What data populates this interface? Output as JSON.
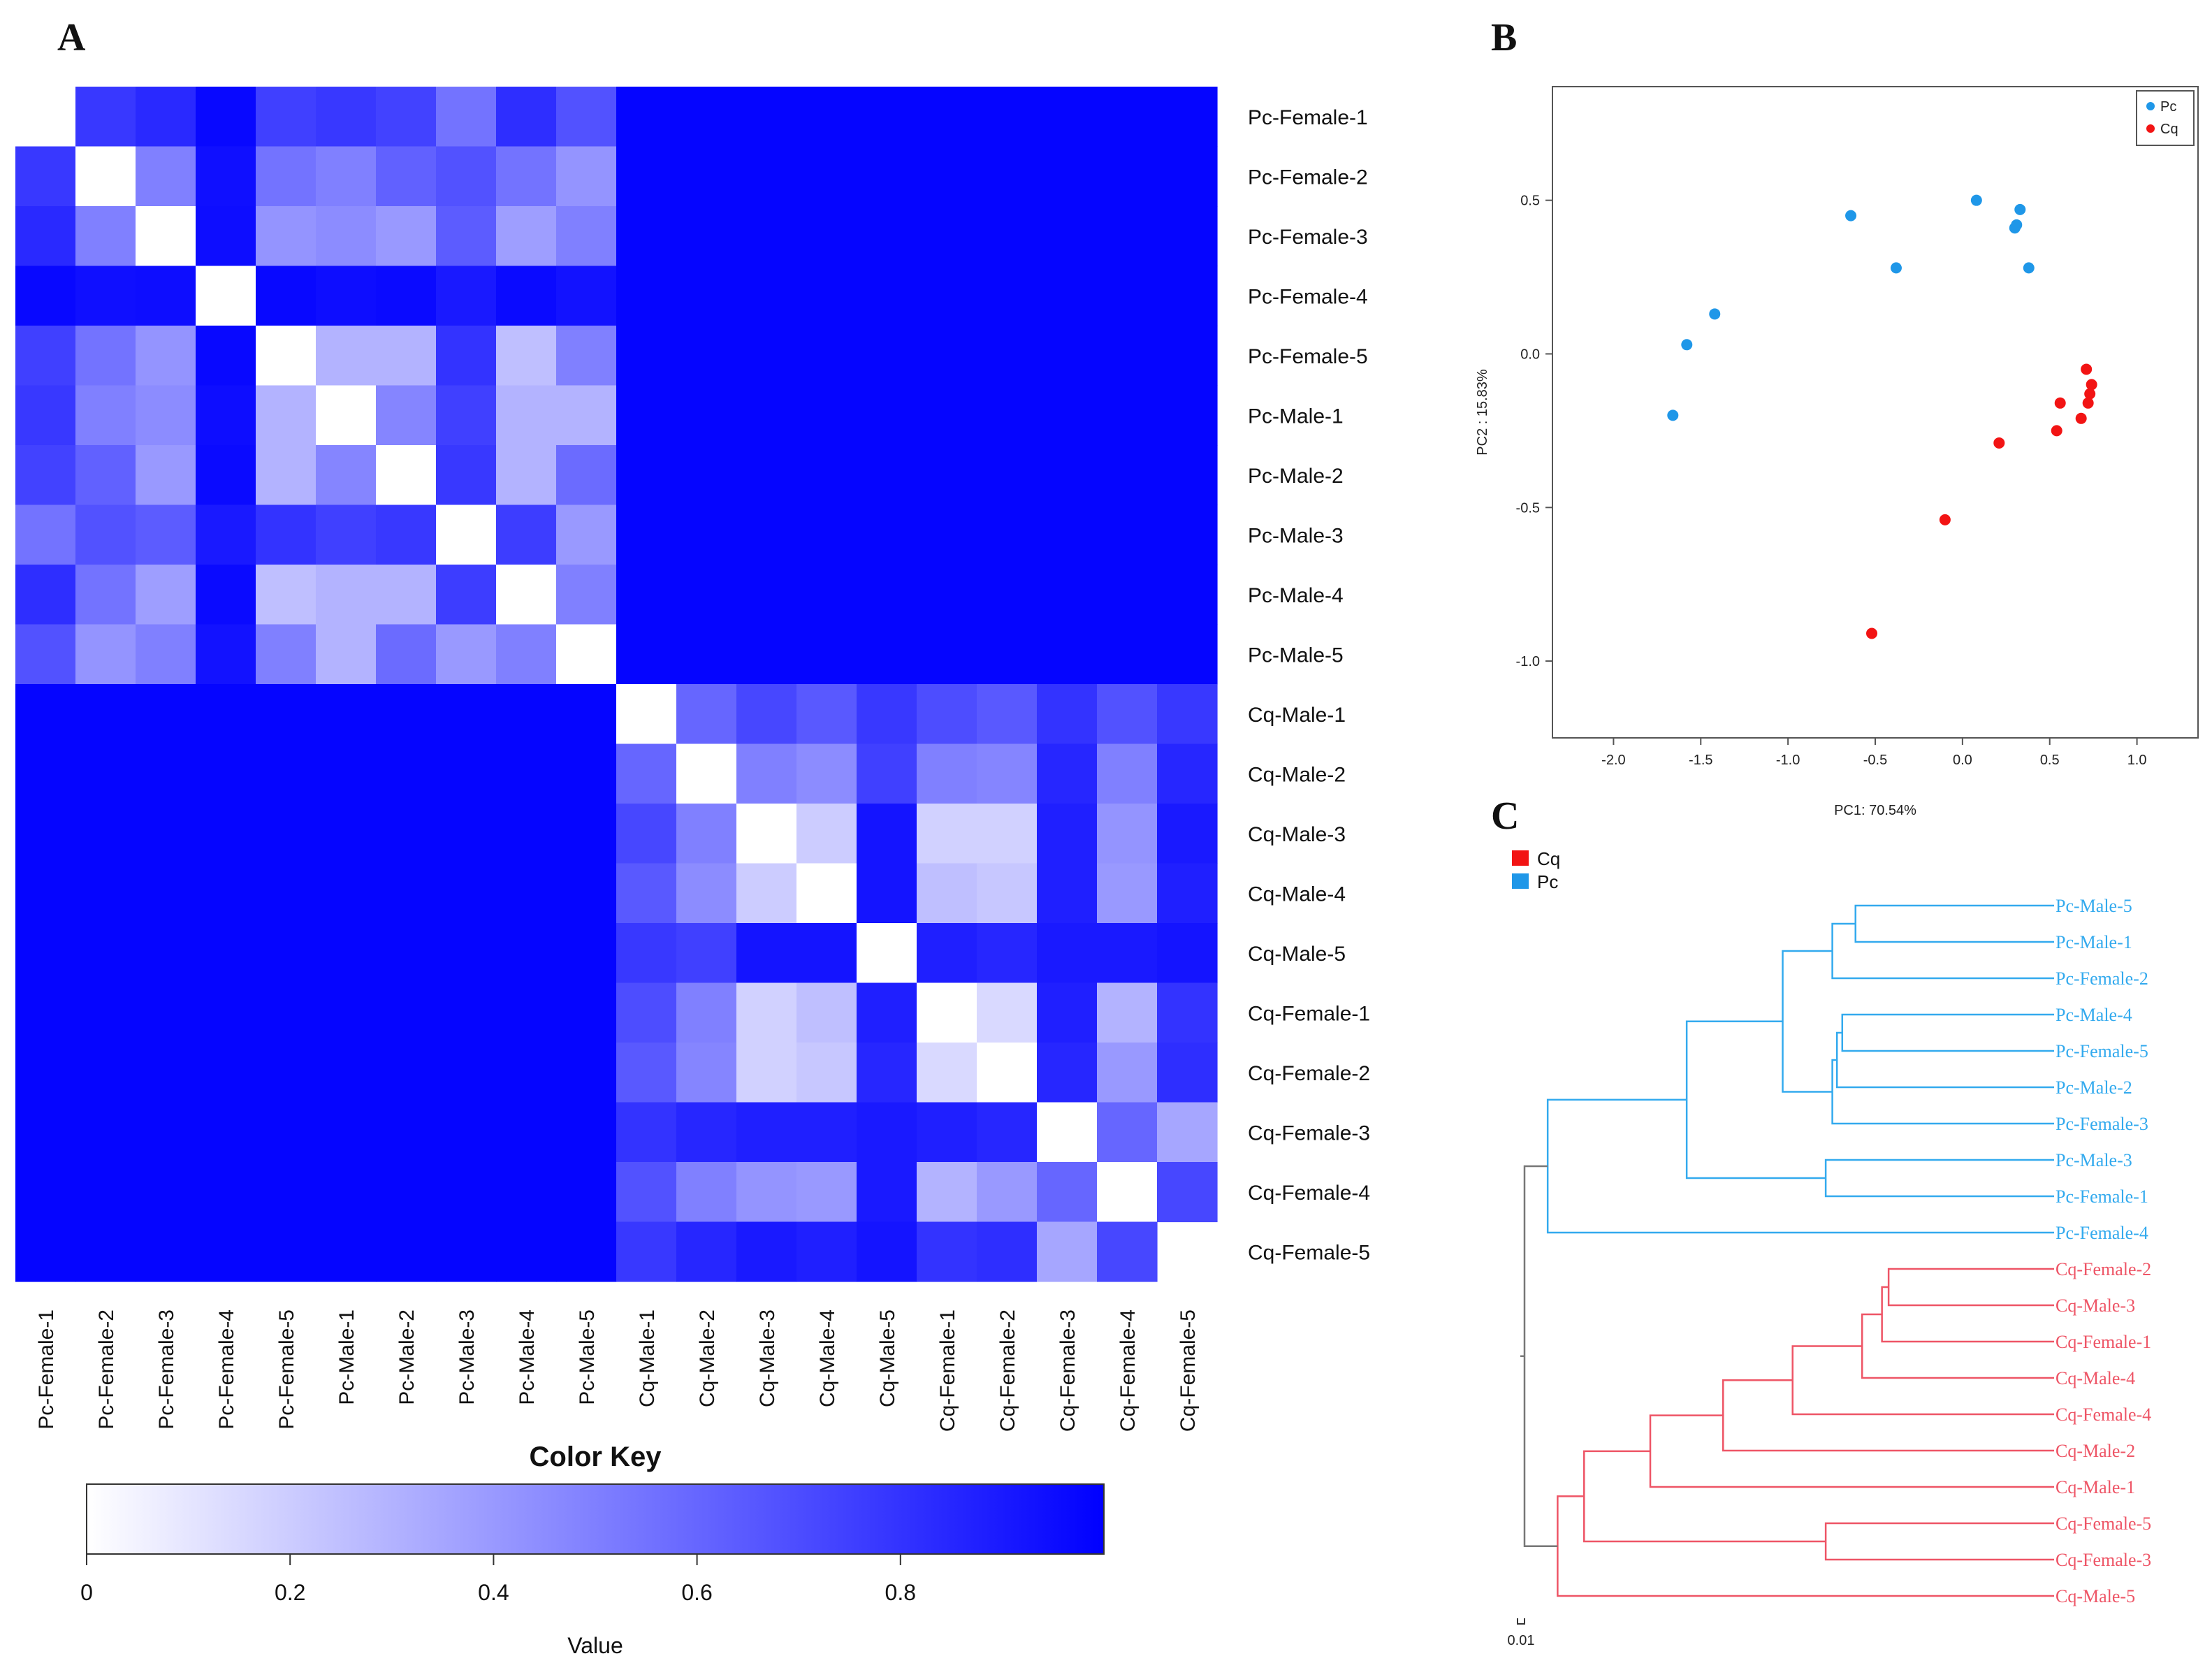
{
  "panels": {
    "a": "A",
    "b": "B",
    "c": "C"
  },
  "colors": {
    "pc": "#1f97e8",
    "cq": "#f21414",
    "dendro_pc": "#33aaee",
    "dendro_cq": "#ee5566",
    "axis": "#555555",
    "heat_high": "#0000ff"
  },
  "chart_data": [
    {
      "type": "heatmap",
      "title": "",
      "samples": [
        "Pc-Female-1",
        "Pc-Female-2",
        "Pc-Female-3",
        "Pc-Female-4",
        "Pc-Female-5",
        "Pc-Male-1",
        "Pc-Male-2",
        "Pc-Male-3",
        "Pc-Male-4",
        "Pc-Male-5",
        "Cq-Male-1",
        "Cq-Male-2",
        "Cq-Male-3",
        "Cq-Male-4",
        "Cq-Male-5",
        "Cq-Female-1",
        "Cq-Female-2",
        "Cq-Female-3",
        "Cq-Female-4",
        "Cq-Female-5"
      ],
      "pc_block_values": [
        [
          0.0,
          0.78,
          0.84,
          0.97,
          0.75,
          0.78,
          0.74,
          0.55,
          0.82,
          0.68
        ],
        [
          0.78,
          0.0,
          0.5,
          0.94,
          0.55,
          0.5,
          0.62,
          0.68,
          0.55,
          0.42
        ],
        [
          0.84,
          0.5,
          0.0,
          0.95,
          0.42,
          0.45,
          0.4,
          0.64,
          0.38,
          0.5
        ],
        [
          0.97,
          0.94,
          0.95,
          0.0,
          0.97,
          0.95,
          0.96,
          0.9,
          0.96,
          0.93
        ],
        [
          0.75,
          0.55,
          0.42,
          0.97,
          0.0,
          0.3,
          0.3,
          0.8,
          0.25,
          0.5
        ],
        [
          0.78,
          0.5,
          0.45,
          0.95,
          0.3,
          0.0,
          0.48,
          0.75,
          0.3,
          0.3
        ],
        [
          0.74,
          0.62,
          0.4,
          0.96,
          0.3,
          0.48,
          0.0,
          0.78,
          0.3,
          0.58
        ],
        [
          0.55,
          0.68,
          0.64,
          0.9,
          0.8,
          0.75,
          0.78,
          0.0,
          0.76,
          0.4
        ],
        [
          0.82,
          0.55,
          0.38,
          0.96,
          0.25,
          0.3,
          0.3,
          0.76,
          0.0,
          0.5
        ],
        [
          0.68,
          0.42,
          0.5,
          0.93,
          0.5,
          0.3,
          0.58,
          0.4,
          0.5,
          0.0
        ]
      ],
      "cq_block_values": [
        [
          0.0,
          0.6,
          0.72,
          0.65,
          0.78,
          0.7,
          0.65,
          0.8,
          0.68,
          0.78
        ],
        [
          0.6,
          0.0,
          0.5,
          0.45,
          0.75,
          0.5,
          0.48,
          0.85,
          0.5,
          0.85
        ],
        [
          0.72,
          0.5,
          0.0,
          0.2,
          0.92,
          0.18,
          0.18,
          0.88,
          0.42,
          0.9
        ],
        [
          0.65,
          0.45,
          0.2,
          0.0,
          0.92,
          0.25,
          0.22,
          0.88,
          0.4,
          0.88
        ],
        [
          0.78,
          0.75,
          0.92,
          0.92,
          0.0,
          0.88,
          0.85,
          0.9,
          0.9,
          0.92
        ],
        [
          0.7,
          0.5,
          0.18,
          0.25,
          0.88,
          0.0,
          0.15,
          0.88,
          0.3,
          0.8
        ],
        [
          0.65,
          0.48,
          0.18,
          0.22,
          0.85,
          0.15,
          0.0,
          0.85,
          0.4,
          0.82
        ],
        [
          0.8,
          0.85,
          0.88,
          0.88,
          0.9,
          0.88,
          0.85,
          0.0,
          0.6,
          0.35
        ],
        [
          0.68,
          0.5,
          0.42,
          0.4,
          0.9,
          0.3,
          0.4,
          0.6,
          0.0,
          0.72
        ],
        [
          0.78,
          0.85,
          0.9,
          0.88,
          0.92,
          0.8,
          0.82,
          0.35,
          0.72,
          0.0
        ]
      ],
      "between_group_value": 0.98,
      "color_key": {
        "title": "Color Key",
        "xlabel": "Value",
        "ticks": [
          "0",
          "0.2",
          "0.4",
          "0.6",
          "0.8"
        ],
        "tick_values": [
          0,
          0.2,
          0.4,
          0.6,
          0.8
        ],
        "range": [
          0,
          1
        ]
      }
    },
    {
      "type": "scatter",
      "title": "",
      "xlabel": "PC1: 70.54%",
      "ylabel": "PC2 : 15.83%",
      "xlim": [
        -2.35,
        1.35
      ],
      "ylim": [
        -1.25,
        0.87
      ],
      "xticks": [
        "-2.0",
        "-1.5",
        "-1.0",
        "-0.5",
        "0.0",
        "0.5",
        "1.0"
      ],
      "xtick_values": [
        -2.0,
        -1.5,
        -1.0,
        -0.5,
        0.0,
        0.5,
        1.0
      ],
      "yticks": [
        "0.5",
        "0.0",
        "-0.5",
        "-1.0"
      ],
      "ytick_values": [
        0.5,
        0.0,
        -0.5,
        -1.0
      ],
      "legend": [
        "Pc",
        "Cq"
      ],
      "series": [
        {
          "name": "Pc",
          "x": [
            -1.66,
            -1.58,
            -1.42,
            -0.64,
            -0.38,
            0.08,
            0.3,
            0.31,
            0.33,
            0.38
          ],
          "y": [
            -0.2,
            0.03,
            0.13,
            0.45,
            0.28,
            0.5,
            0.41,
            0.42,
            0.47,
            0.28
          ]
        },
        {
          "name": "Cq",
          "x": [
            -0.52,
            -0.1,
            0.21,
            0.54,
            0.56,
            0.68,
            0.71,
            0.72,
            0.73,
            0.74
          ],
          "y": [
            -0.91,
            -0.54,
            -0.29,
            -0.25,
            -0.16,
            -0.21,
            -0.05,
            -0.16,
            -0.13,
            -0.1
          ]
        }
      ]
    },
    {
      "type": "dendrogram",
      "title": "",
      "legend": [
        "Cq",
        "Pc"
      ],
      "scale_label": "0.01",
      "leaves": [
        "Pc-Male-5",
        "Pc-Male-1",
        "Pc-Female-2",
        "Pc-Male-4",
        "Pc-Female-5",
        "Pc-Male-2",
        "Pc-Female-3",
        "Pc-Male-3",
        "Pc-Female-1",
        "Pc-Female-4",
        "Cq-Female-2",
        "Cq-Male-3",
        "Cq-Female-1",
        "Cq-Male-4",
        "Cq-Female-4",
        "Cq-Male-2",
        "Cq-Male-1",
        "Cq-Female-5",
        "Cq-Female-3",
        "Cq-Male-5"
      ],
      "leaf_groups": [
        "Pc",
        "Pc",
        "Pc",
        "Pc",
        "Pc",
        "Pc",
        "Pc",
        "Pc",
        "Pc",
        "Pc",
        "Cq",
        "Cq",
        "Cq",
        "Cq",
        "Cq",
        "Cq",
        "Cq",
        "Cq",
        "Cq",
        "Cq"
      ],
      "leaf_height": 0.0,
      "merges": [
        {
          "a": "L0",
          "b": "L1",
          "h": 0.3,
          "g": "Pc"
        },
        {
          "a": "M0",
          "b": "L2",
          "h": 0.335,
          "g": "Pc"
        },
        {
          "a": "L3",
          "b": "L4",
          "h": 0.32,
          "g": "Pc"
        },
        {
          "a": "M2",
          "b": "L5",
          "h": 0.328,
          "g": "Pc"
        },
        {
          "a": "M3",
          "b": "L6",
          "h": 0.335,
          "g": "Pc"
        },
        {
          "a": "M1",
          "b": "M4",
          "h": 0.41,
          "g": "Pc"
        },
        {
          "a": "L7",
          "b": "L8",
          "h": 0.345,
          "g": "Pc"
        },
        {
          "a": "M5",
          "b": "M6",
          "h": 0.555,
          "g": "Pc"
        },
        {
          "a": "M7",
          "b": "L9",
          "h": 0.765,
          "g": "Pc"
        },
        {
          "a": "L10",
          "b": "L11",
          "h": 0.25,
          "g": "Cq"
        },
        {
          "a": "M9",
          "b": "L12",
          "h": 0.26,
          "g": "Cq"
        },
        {
          "a": "M10",
          "b": "L13",
          "h": 0.29,
          "g": "Cq"
        },
        {
          "a": "M11",
          "b": "L14",
          "h": 0.395,
          "g": "Cq"
        },
        {
          "a": "M12",
          "b": "L15",
          "h": 0.5,
          "g": "Cq"
        },
        {
          "a": "M13",
          "b": "L16",
          "h": 0.61,
          "g": "Cq"
        },
        {
          "a": "L17",
          "b": "L18",
          "h": 0.345,
          "g": "Cq"
        },
        {
          "a": "M14",
          "b": "M15",
          "h": 0.71,
          "g": "Cq"
        },
        {
          "a": "M16",
          "b": "L19",
          "h": 0.75,
          "g": "Cq"
        },
        {
          "a": "M8",
          "b": "M17",
          "h": 0.8,
          "g": "root"
        }
      ]
    }
  ]
}
